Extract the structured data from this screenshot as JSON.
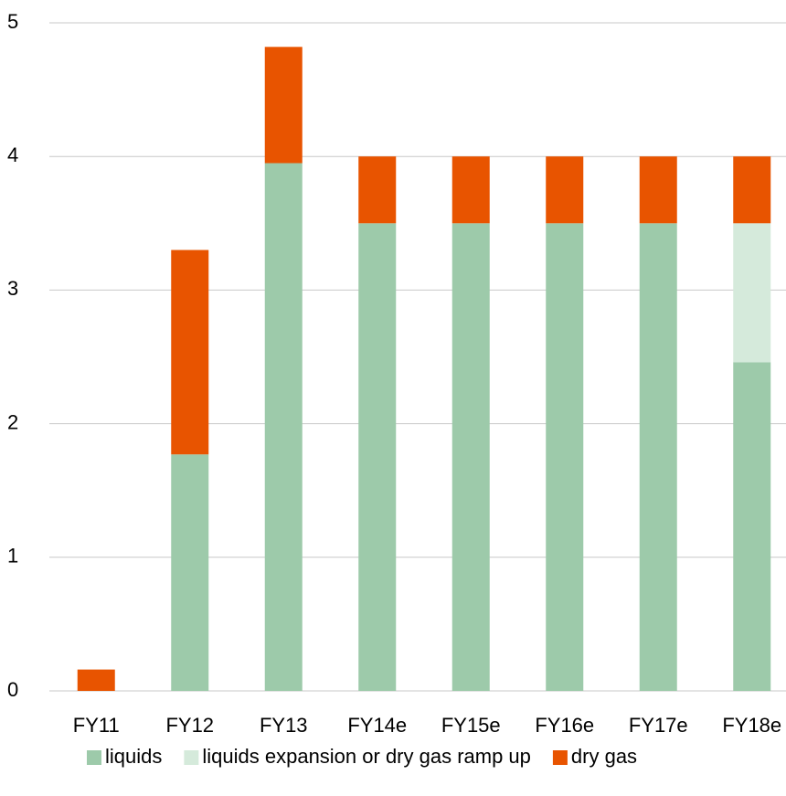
{
  "chart_data": {
    "type": "stacked_bar",
    "categories": [
      "FY11",
      "FY12",
      "FY13",
      "FY14e",
      "FY15e",
      "FY16e",
      "FY17e",
      "FY18e"
    ],
    "series": [
      {
        "name": "liquids",
        "color": "#9dcaaa",
        "values": [
          0,
          1.77,
          3.95,
          3.5,
          3.5,
          3.5,
          3.5,
          2.46
        ]
      },
      {
        "name": "liquids expansion or dry gas ramp up",
        "color": "#d5eadb",
        "values": [
          0,
          0,
          0,
          0,
          0,
          0,
          0,
          1.04
        ]
      },
      {
        "name": "dry gas",
        "color": "#e85400",
        "values": [
          0.16,
          1.53,
          0.87,
          0.5,
          0.5,
          0.5,
          0.5,
          0.5
        ]
      }
    ],
    "ylim": [
      0,
      5
    ],
    "yticks": [
      0,
      1,
      2,
      3,
      4,
      5
    ],
    "grid": true,
    "legend": "bottom"
  }
}
